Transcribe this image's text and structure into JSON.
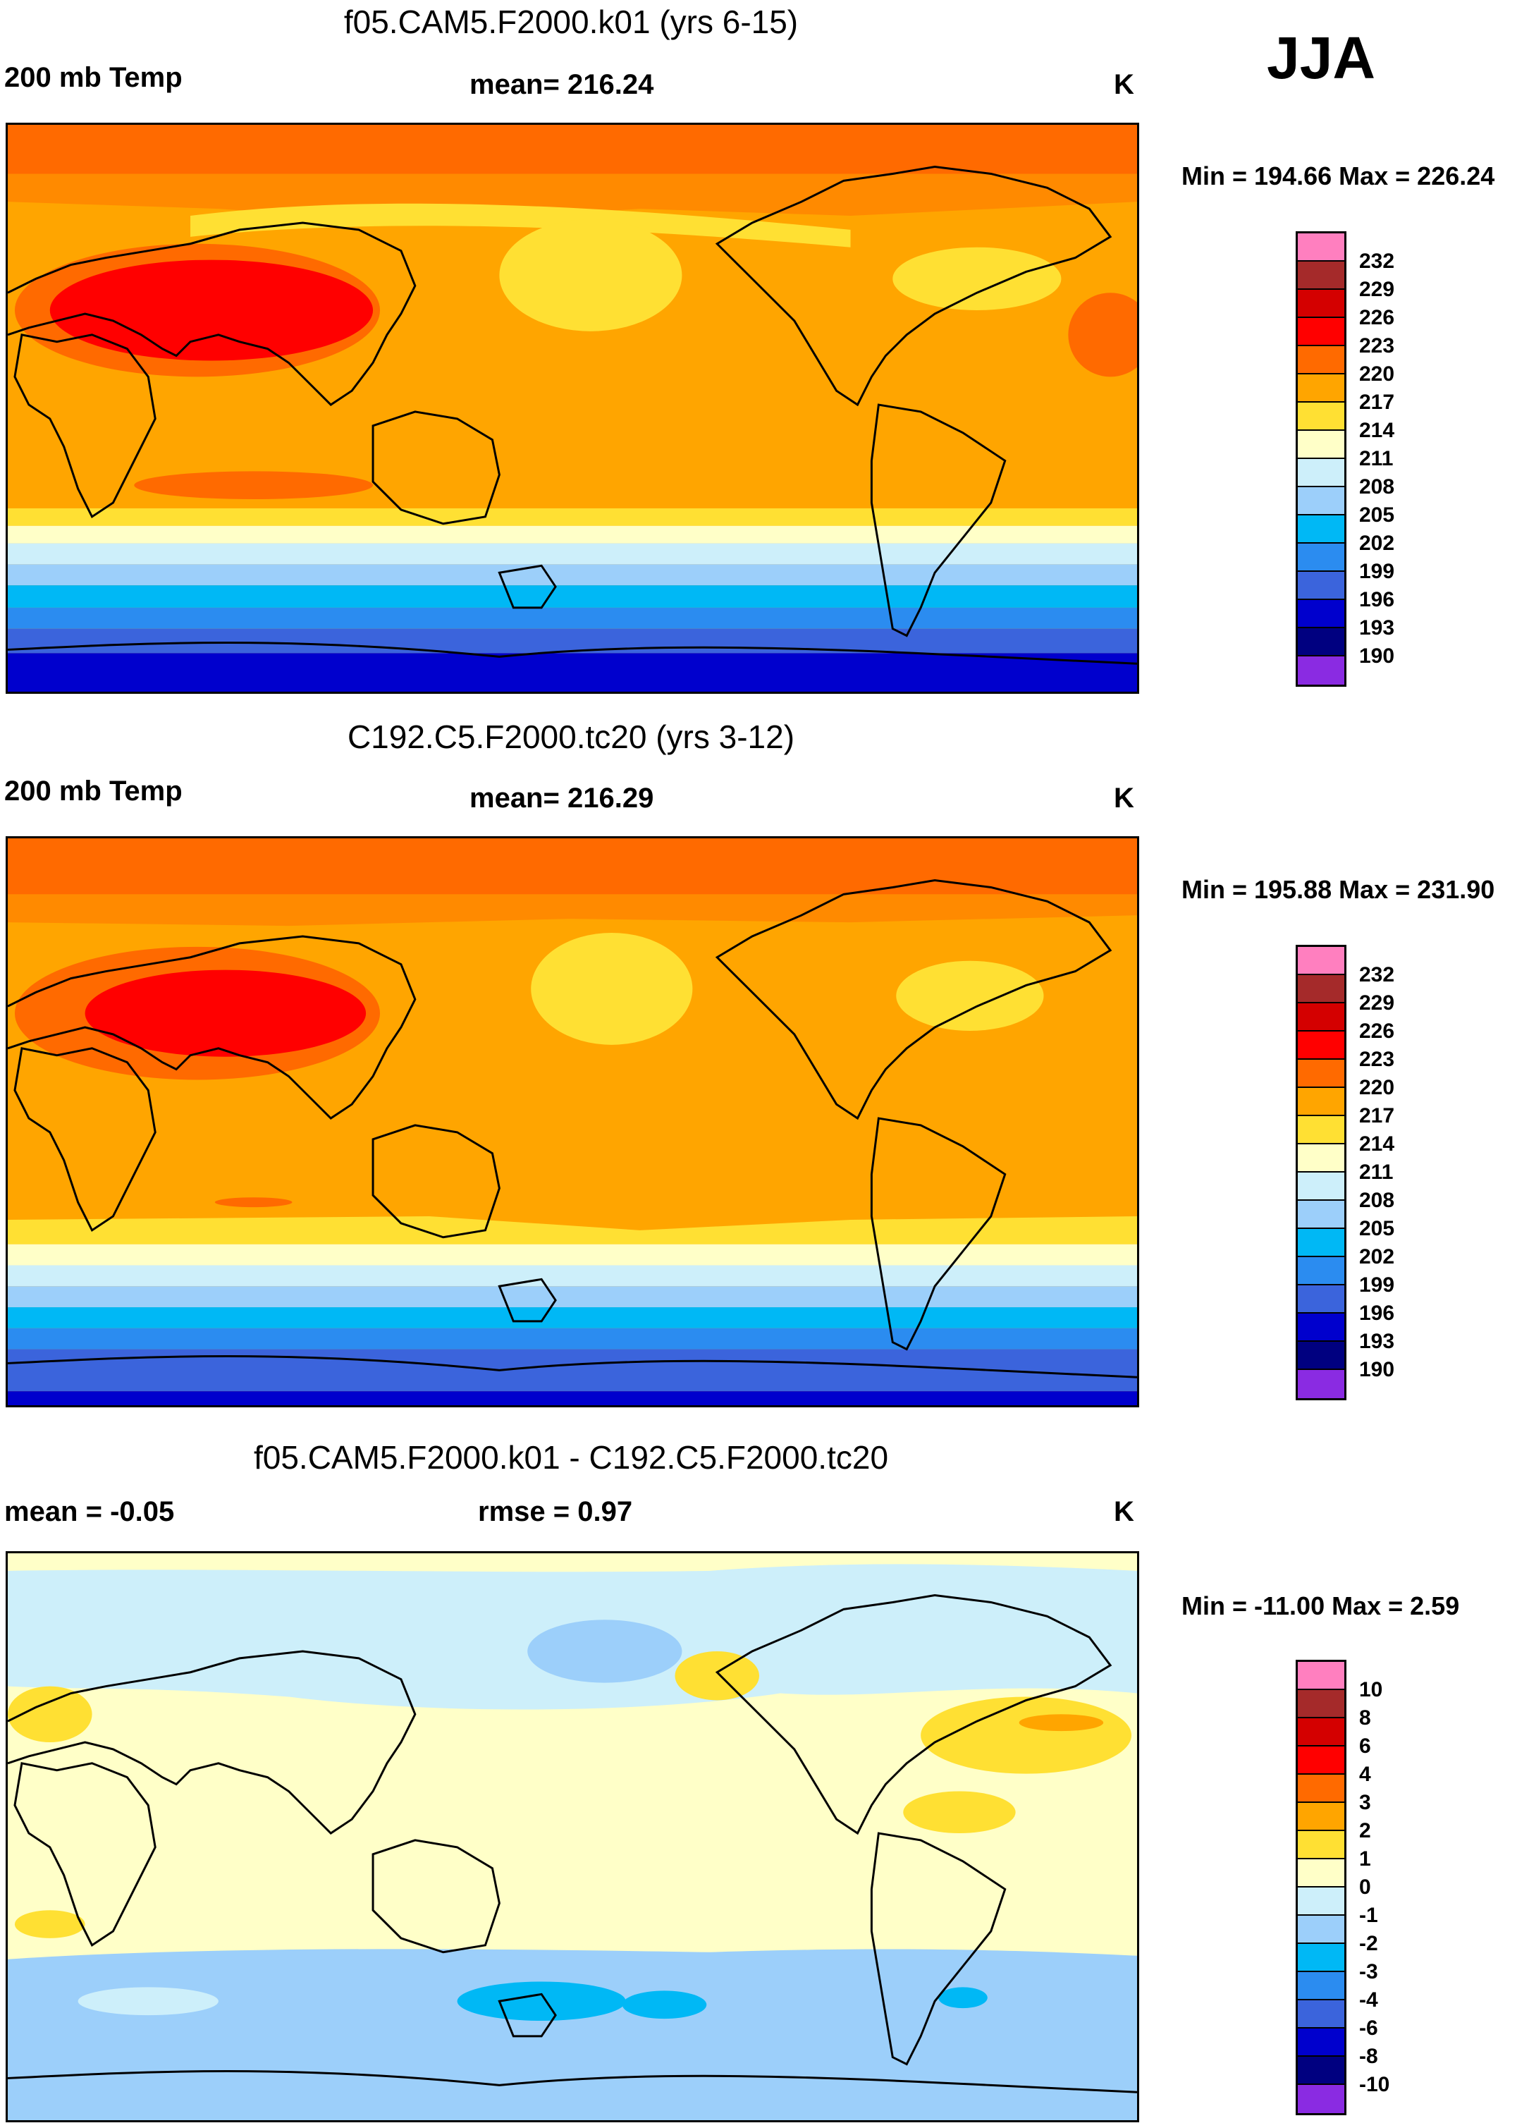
{
  "season": "JJA",
  "panels": [
    {
      "title": "f05.CAM5.F2000.k01 (yrs 6-15)",
      "left_label": "200 mb Temp",
      "center_label": "mean= 216.24",
      "units": "K",
      "minmax": "Min = 194.66 Max = 226.24",
      "colorbar_labels": [
        "232",
        "229",
        "226",
        "223",
        "220",
        "217",
        "214",
        "211",
        "208",
        "205",
        "202",
        "199",
        "196",
        "193",
        "190"
      ]
    },
    {
      "title": "C192.C5.F2000.tc20 (yrs 3-12)",
      "left_label": "200 mb Temp",
      "center_label": "mean= 216.29",
      "units": "K",
      "minmax": "Min = 195.88 Max = 231.90",
      "colorbar_labels": [
        "232",
        "229",
        "226",
        "223",
        "220",
        "217",
        "214",
        "211",
        "208",
        "205",
        "202",
        "199",
        "196",
        "193",
        "190"
      ]
    },
    {
      "title": "f05.CAM5.F2000.k01 - C192.C5.F2000.tc20",
      "left_label": "mean =  -0.05",
      "center_label": "rmse =   0.97",
      "units": "K",
      "minmax": "Min = -11.00 Max =   2.59",
      "colorbar_labels": [
        "10",
        "8",
        "6",
        "4",
        "3",
        "2",
        "1",
        "0",
        "-1",
        "-2",
        "-3",
        "-4",
        "-6",
        "-8",
        "-10"
      ]
    }
  ],
  "colorbar_colors": [
    "#ff7fbf",
    "#a52a2a",
    "#d40000",
    "#ff0000",
    "#ff6a00",
    "#ffa500",
    "#ffe033",
    "#ffffc8",
    "#cdeffa",
    "#9ccffa",
    "#00b8f5",
    "#2b8cf0",
    "#3b64dc",
    "#0000cd",
    "#000080",
    "#8a2be2"
  ]
}
